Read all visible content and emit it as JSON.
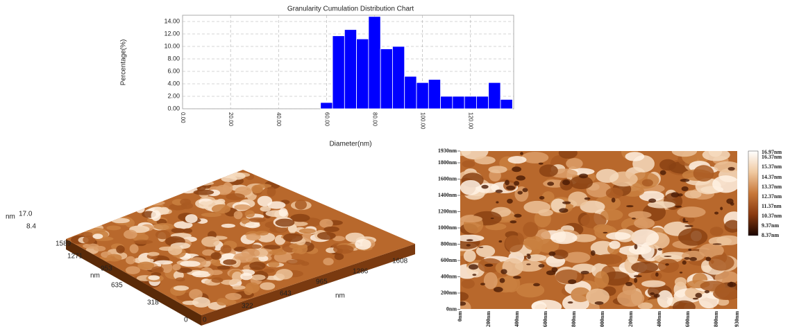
{
  "chart_data": {
    "type": "histogram",
    "title": "Granularity Cumulation Distribution  Chart",
    "x_label": "Diameter(nm)",
    "y_label": "Percentage(%)",
    "bins": [
      57.5,
      62.5,
      67.5,
      72.5,
      77.5,
      82.5,
      87.5,
      92.5,
      97.5,
      102.5,
      107.5,
      112.5,
      117.5,
      122.5,
      127.5,
      132.5,
      137.5
    ],
    "values": [
      1.0,
      11.7,
      12.7,
      11.2,
      14.8,
      9.6,
      10.0,
      5.2,
      4.2,
      4.7,
      2.0,
      2.0,
      2.0,
      2.0,
      4.2,
      1.5
    ],
    "color": "#0000ff",
    "xlim": [
      0,
      138
    ],
    "ylim": [
      0,
      15
    ],
    "xticks": [
      {
        "value": 0,
        "label": "0.00"
      },
      {
        "value": 20,
        "label": "20.00"
      },
      {
        "value": 40,
        "label": "40.00"
      },
      {
        "value": 60,
        "label": "60.00"
      },
      {
        "value": 80,
        "label": "80.00"
      },
      {
        "value": 100,
        "label": "100.00"
      },
      {
        "value": 120,
        "label": "120.00"
      }
    ],
    "yticks": [
      {
        "value": 0,
        "label": "0.00"
      },
      {
        "value": 2,
        "label": "2.00"
      },
      {
        "value": 4,
        "label": "4.00"
      },
      {
        "value": 6,
        "label": "6.00"
      },
      {
        "value": 8,
        "label": "8.00"
      },
      {
        "value": 10,
        "label": "10.00"
      },
      {
        "value": 12,
        "label": "12.00"
      },
      {
        "value": 14,
        "label": "14.00"
      }
    ],
    "grid": true
  },
  "afm_3d": {
    "z_unit": "nm",
    "z_max": "17.0",
    "z_min": "8.4",
    "y_unit": "nm",
    "y_labels": [
      "1589",
      "1271",
      "953",
      "635",
      "318",
      "0"
    ],
    "x_labels": [
      "0",
      "322",
      "643",
      "965",
      "1286",
      "1608"
    ],
    "x_unit": "nm"
  },
  "afm_2d": {
    "y_labels": [
      "1930nm",
      "1800nm",
      "1600nm",
      "1400nm",
      "1200nm",
      "1000nm",
      "800nm",
      "600nm",
      "400nm",
      "200nm",
      "0nm"
    ],
    "x_labels": [
      "0nm",
      "200nm",
      "400nm",
      "600nm",
      "800nm",
      "1000nm",
      "1200nm",
      "1400nm",
      "1600nm",
      "1800nm",
      "1930nm"
    ],
    "colorbar_labels": [
      "16.97nm",
      "16.37nm",
      "15.37nm",
      "14.37nm",
      "13.37nm",
      "12.37nm",
      "11.37nm",
      "10.37nm",
      "9.37nm",
      "8.37nm"
    ]
  }
}
